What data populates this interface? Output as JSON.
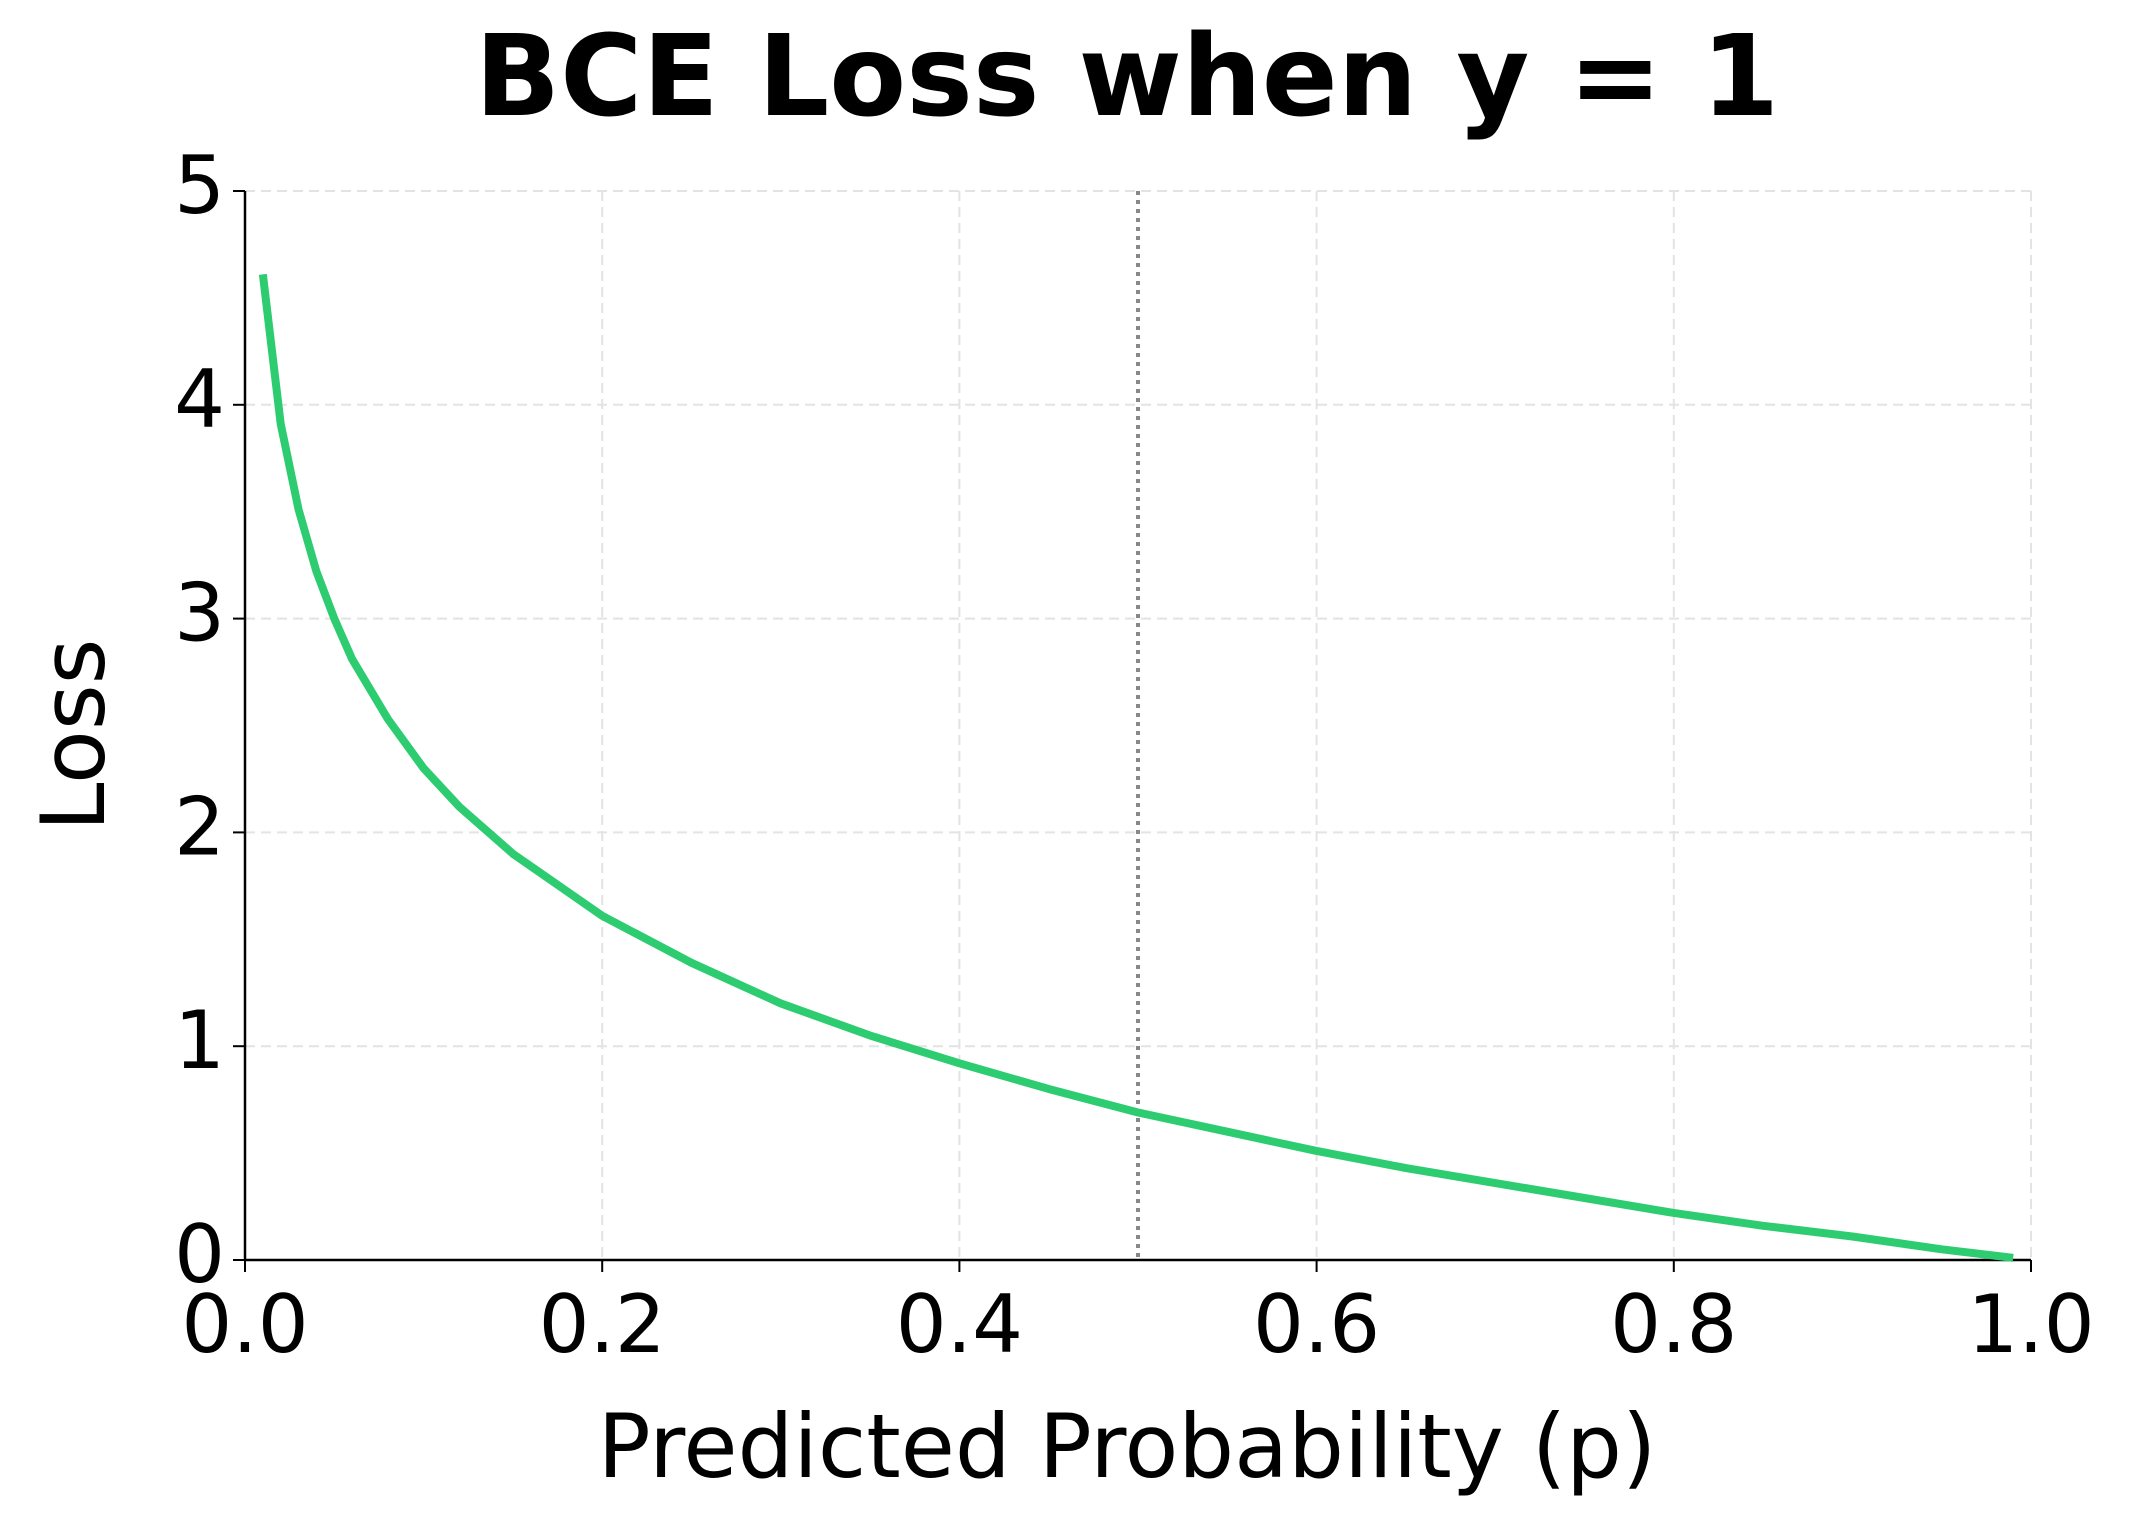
{
  "chart_data": {
    "type": "line",
    "title": "BCE Loss when y = 1",
    "x_label": "Predicted Probability (p)",
    "y_label": "Loss",
    "x": [
      0.01,
      0.02,
      0.03,
      0.04,
      0.05,
      0.06,
      0.08,
      0.1,
      0.12,
      0.15,
      0.2,
      0.25,
      0.3,
      0.35,
      0.4,
      0.45,
      0.5,
      0.55,
      0.6,
      0.65,
      0.7,
      0.75,
      0.8,
      0.85,
      0.9,
      0.95,
      0.99
    ],
    "series": [
      {
        "color": "#2ecc71",
        "values": [
          4.61,
          3.91,
          3.51,
          3.22,
          3.0,
          2.81,
          2.53,
          2.3,
          2.12,
          1.9,
          1.61,
          1.39,
          1.2,
          1.05,
          0.92,
          0.8,
          0.69,
          0.6,
          0.51,
          0.43,
          0.36,
          0.29,
          0.22,
          0.16,
          0.11,
          0.05,
          0.01
        ]
      }
    ],
    "reference_x": 0.5,
    "xlim": [
      0,
      1
    ],
    "ylim": [
      0,
      5
    ],
    "xticks": [
      {
        "value": 0,
        "label": "0.0"
      },
      0.2,
      0.4,
      0.6,
      0.8,
      {
        "value": 1,
        "label": "1.0"
      }
    ],
    "yticks": [
      0,
      1,
      2,
      3,
      4,
      5
    ],
    "grid": true
  }
}
